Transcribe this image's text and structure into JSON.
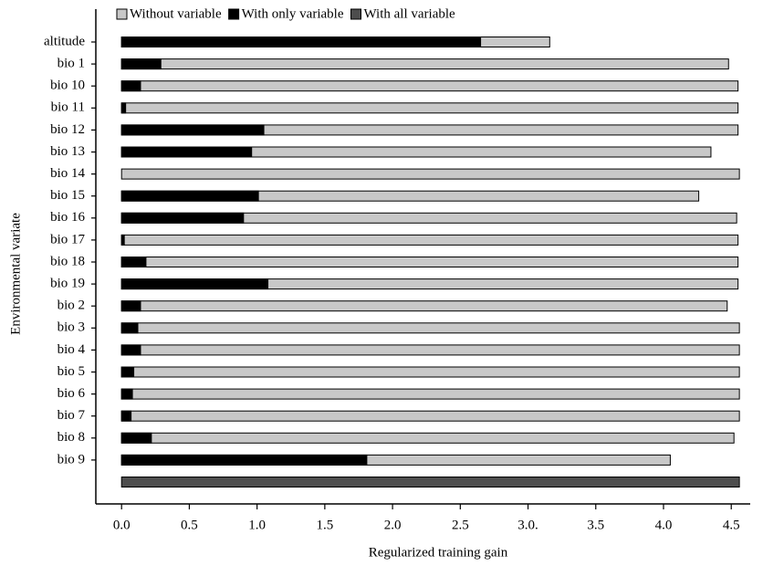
{
  "chart_data": {
    "type": "bar",
    "orientation": "horizontal",
    "overlay": true,
    "xlabel": "Regularized training gain",
    "ylabel": "Environmental variate",
    "categories": [
      "altitude",
      "bio 1",
      "bio 10",
      "bio 11",
      "bio 12",
      "bio 13",
      "bio 14",
      "bio 15",
      "bio 16",
      "bio 17",
      "bio 18",
      "bio 19",
      "bio 2",
      "bio 3",
      "bio 4",
      "bio 5",
      "bio 6",
      "bio 7",
      "bio 8",
      "bio 9",
      null
    ],
    "series": [
      {
        "name": "Without variable",
        "color": "#c8c8c8",
        "values": [
          3.16,
          4.48,
          4.55,
          4.55,
          4.55,
          4.35,
          4.56,
          4.26,
          4.54,
          4.55,
          4.55,
          4.55,
          4.47,
          4.56,
          4.56,
          4.56,
          4.56,
          4.56,
          4.52,
          4.05,
          null
        ]
      },
      {
        "name": "With only variable",
        "color": "#000000",
        "values": [
          2.65,
          0.29,
          0.14,
          0.03,
          1.05,
          0.96,
          0,
          1.01,
          0.9,
          0.02,
          0.18,
          1.08,
          0.14,
          0.12,
          0.14,
          0.09,
          0.08,
          0.07,
          0.22,
          1.81,
          null
        ]
      },
      {
        "name": "With all variable",
        "color": "#4d4d4d",
        "values": [
          null,
          null,
          null,
          null,
          null,
          null,
          null,
          null,
          null,
          null,
          null,
          null,
          null,
          null,
          null,
          null,
          null,
          null,
          null,
          null,
          4.56
        ]
      }
    ],
    "xlim": [
      -0.19,
      4.64
    ],
    "xticks": [
      {
        "value": 0,
        "label": "0.0"
      },
      0.5,
      {
        "value": 1,
        "label": "1.0"
      },
      1.5,
      {
        "value": 2,
        "label": "2.0"
      },
      2.5,
      {
        "value": 3,
        "label": "3.0."
      },
      3.5,
      {
        "value": 4,
        "label": "4.0"
      },
      4.5
    ],
    "legend": "top"
  }
}
